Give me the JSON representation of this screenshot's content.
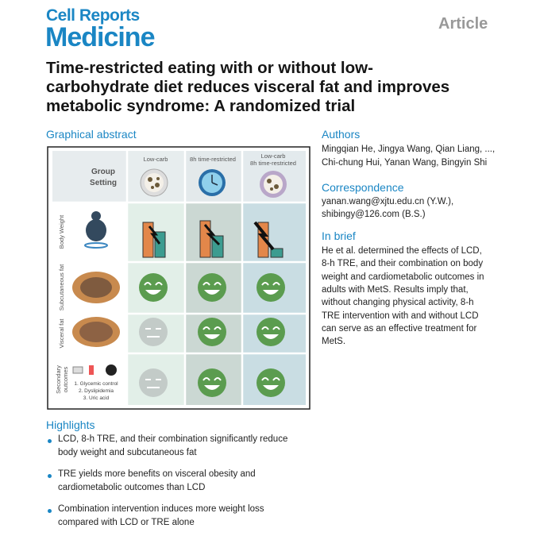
{
  "header": {
    "journal_line1": "Cell Reports",
    "journal_line2": "Medicine",
    "article_type": "Article"
  },
  "title": [
    "Time-restricted eating with or without low-",
    "carbohydrate diet reduces visceral fat and improves",
    "metabolic syndrome: A randomized trial"
  ],
  "graphical_abstract": {
    "heading": "Graphical abstract",
    "group_setting": [
      "Group",
      "Setting"
    ],
    "groups": [
      [
        "Low-carb"
      ],
      [
        "8h time-restricted"
      ],
      [
        "Low-carb",
        "8h time-restricted"
      ]
    ],
    "rows": [
      [
        "Body Weight"
      ],
      [
        "Subcutaneous fat"
      ],
      [
        "Visceral fat"
      ],
      [
        "Secondary",
        "outcomes"
      ]
    ],
    "outcomes": [
      "1. Glycemic control",
      "2. Dyslipidemia",
      "3. Uric acid"
    ]
  },
  "authors": {
    "heading": "Authors",
    "lines": [
      "Mingqian He, Jingya Wang, Qian Liang, ...,",
      "Chi-chung Hui, Yanan Wang, Bingyin Shi"
    ]
  },
  "correspondence": {
    "heading": "Correspondence",
    "lines": [
      "yanan.wang@xjtu.edu.cn (Y.W.),",
      "shibingy@126.com (B.S.)"
    ]
  },
  "in_brief": {
    "heading": "In brief",
    "lines": [
      "He et al. determined the effects of LCD,",
      "8-h TRE, and their combination on body",
      "weight and cardiometabolic outcomes in",
      "adults with MetS. Results imply that,",
      "without changing physical activity, 8-h",
      "TRE intervention with and without LCD",
      "can serve as an effective treatment for",
      "MetS."
    ]
  },
  "highlights": {
    "heading": "Highlights",
    "items": [
      [
        "LCD, 8-h TRE, and their combination significantly reduce",
        "body weight and subcutaneous fat"
      ],
      [
        "TRE yields more benefits on visceral obesity and",
        "cardiometabolic outcomes than LCD"
      ],
      [
        "Combination intervention induces more weight loss",
        "compared with LCD or TRE alone"
      ]
    ]
  }
}
